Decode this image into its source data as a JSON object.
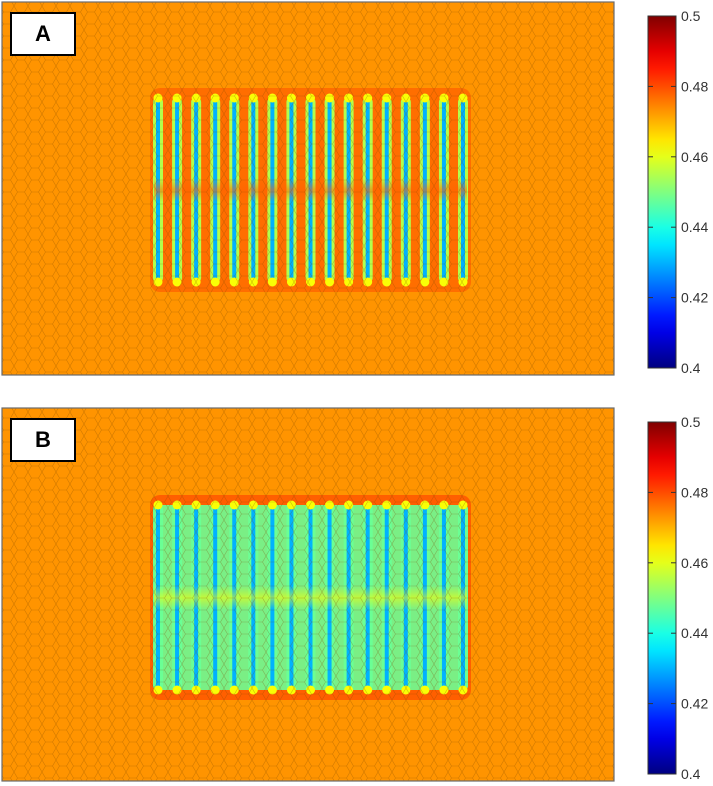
{
  "chart_data": [
    {
      "type": "heatmap",
      "panel_label": "A",
      "background_value": 0.473,
      "stripes": {
        "count": 17,
        "center_value": 0.43,
        "edge_value": 0.455,
        "halo_value": 0.478,
        "mid_band_value": 0.478
      },
      "colorbar": {
        "range": [
          0.4,
          0.5
        ],
        "ticks": [
          "0.4",
          "0.42",
          "0.44",
          "0.46",
          "0.48",
          "0.5"
        ],
        "colormap": "jet"
      }
    },
    {
      "type": "heatmap",
      "panel_label": "B",
      "background_value": 0.473,
      "stripes": {
        "count": 17,
        "center_value": 0.43,
        "edge_value": 0.448,
        "halo_value": 0.48,
        "mid_band_value": 0.462
      },
      "colorbar": {
        "range": [
          0.4,
          0.5
        ],
        "ticks": [
          "0.4",
          "0.42",
          "0.44",
          "0.46",
          "0.48",
          "0.5"
        ],
        "colormap": "jet"
      }
    }
  ]
}
